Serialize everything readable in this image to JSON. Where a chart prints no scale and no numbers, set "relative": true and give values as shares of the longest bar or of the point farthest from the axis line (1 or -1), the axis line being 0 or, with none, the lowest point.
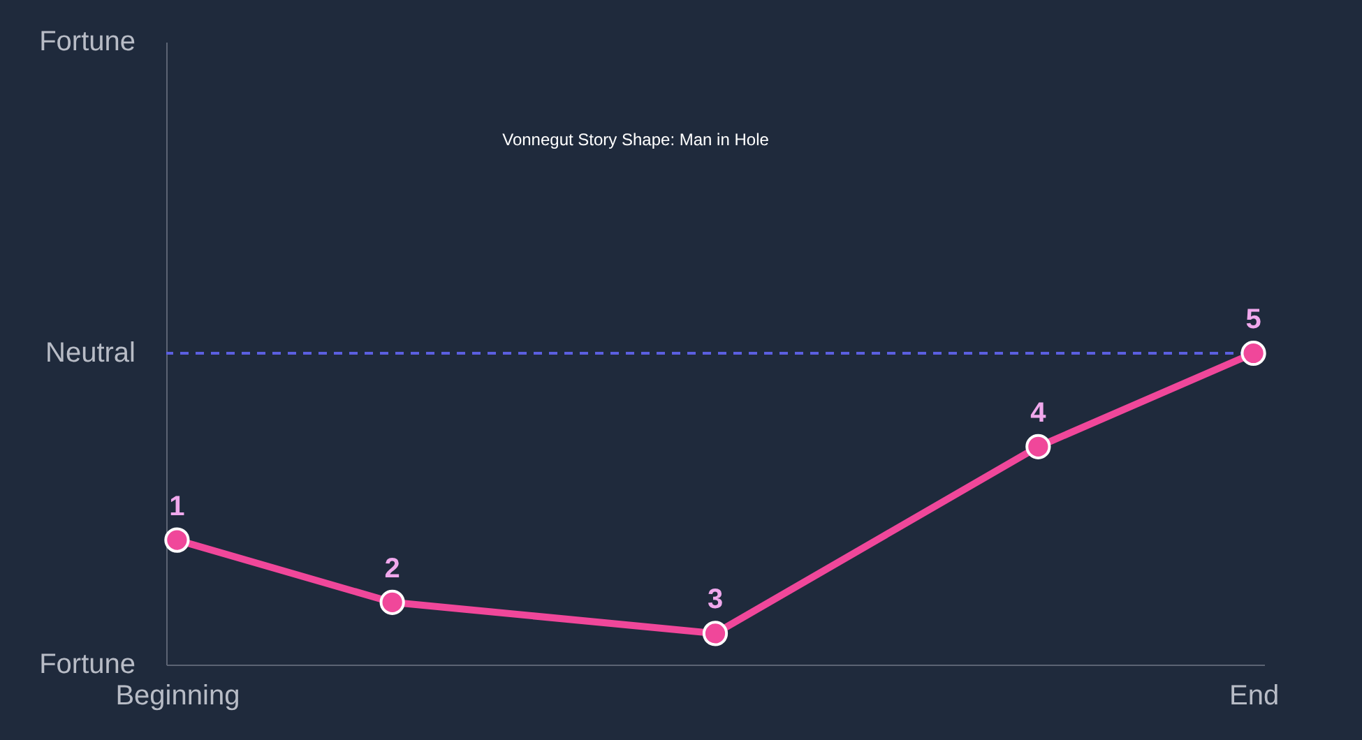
{
  "chart_data": {
    "type": "line",
    "title": "Vonnegut Story Shape: Man in Hole",
    "relative": true,
    "categories": [
      "Beginning",
      null,
      null,
      null,
      null,
      null,
      null,
      null,
      null,
      null,
      "End"
    ],
    "series": [
      {
        "color": "#f0479a",
        "values": [
          0.4,
          null,
          0.2,
          null,
          null,
          0.1,
          null,
          null,
          0.7,
          null,
          1
        ]
      }
    ],
    "ref_lines": [
      {
        "axis": "y",
        "value": 1,
        "label": "Neutral",
        "color": "#5b5fe0",
        "line_style": "dashed"
      }
    ],
    "annotations": [
      "Fortune",
      "Fortune",
      "1",
      "2",
      "3",
      "4",
      "5"
    ],
    "marker": "circle",
    "line_style": "solid",
    "grid": false
  }
}
